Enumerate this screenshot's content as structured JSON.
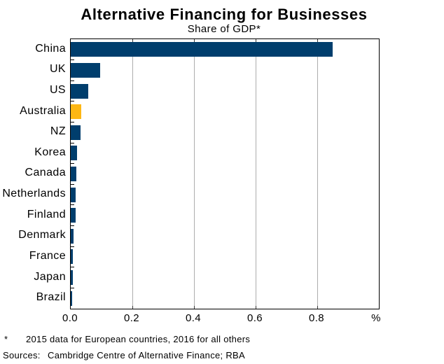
{
  "title": "Alternative Financing for Businesses",
  "subtitle": "Share of GDP*",
  "footnote": {
    "marker": "*",
    "text": "2015 data for European countries, 2016 for all others"
  },
  "sources": {
    "label": "Sources:",
    "text": "Cambridge Centre of Alternative Finance; RBA"
  },
  "chart_data": {
    "type": "bar",
    "orientation": "horizontal",
    "title": "Alternative Financing for Businesses",
    "subtitle": "Share of GDP*",
    "unit": "%",
    "categories": [
      "China",
      "UK",
      "US",
      "Australia",
      "NZ",
      "Korea",
      "Canada",
      "Netherlands",
      "Finland",
      "Denmark",
      "France",
      "Japan",
      "Brazil"
    ],
    "values": [
      0.85,
      0.096,
      0.056,
      0.035,
      0.031,
      0.021,
      0.018,
      0.017,
      0.015,
      0.009,
      0.007,
      0.007,
      0.004
    ],
    "xlim": [
      0,
      1.0
    ],
    "x_ticks": [
      {
        "value": 0.0,
        "label": "0.0"
      },
      {
        "value": 0.2,
        "label": "0.2"
      },
      {
        "value": 0.4,
        "label": "0.4"
      },
      {
        "value": 0.6,
        "label": "0.6"
      },
      {
        "value": 0.8,
        "label": "0.8"
      }
    ],
    "x_axis_suffix": "%",
    "gridlines": [
      0.2,
      0.4,
      0.6,
      0.8
    ],
    "grid": true,
    "legend": "none",
    "highlight_category": "Australia",
    "colors": {
      "bar": "#003e6d",
      "highlight": "#fdb714",
      "gridline": "#adadad",
      "frame": "#000000",
      "text": "#000000"
    }
  }
}
